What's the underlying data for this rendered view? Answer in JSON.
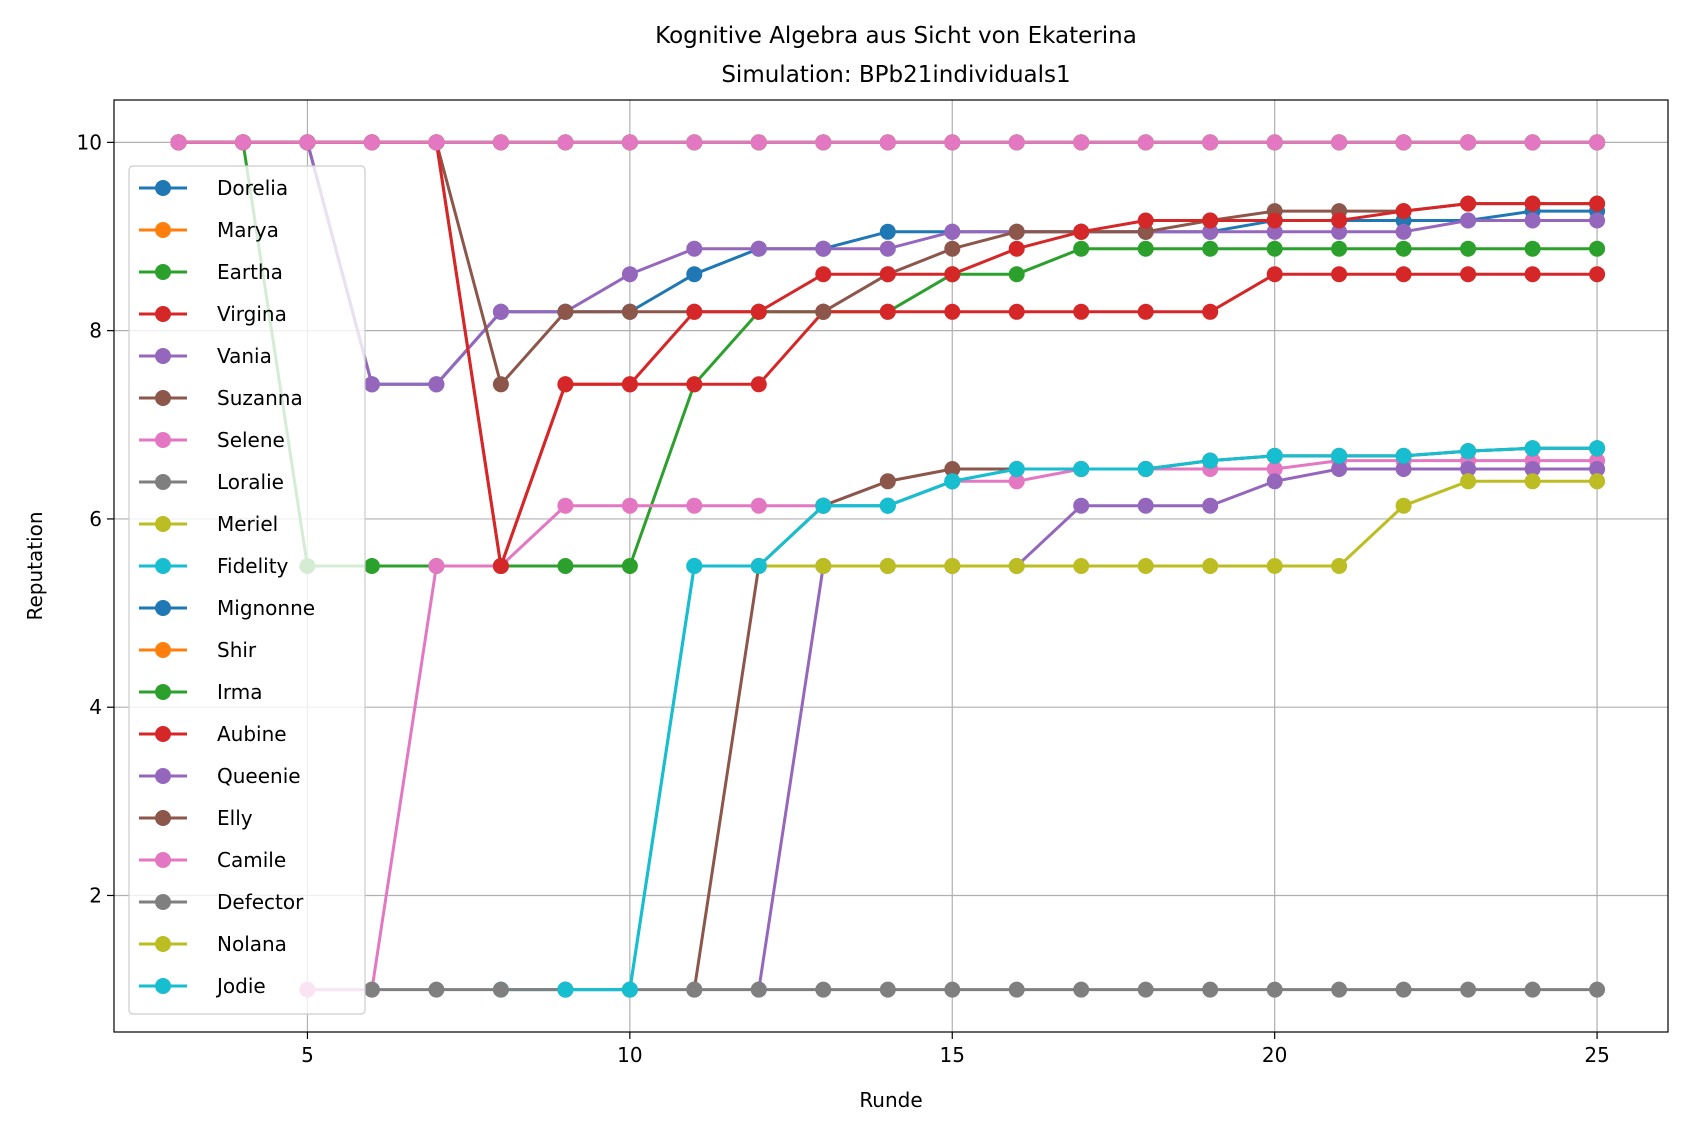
{
  "chart_data": {
    "type": "line",
    "title": "Kognitive Algebra aus Sicht von Ekaterina",
    "subtitle": "Simulation: BPb21individuals1",
    "xlabel": "Runde",
    "ylabel": "Reputation",
    "xlim": [
      2.0,
      26.1
    ],
    "ylim": [
      0.55,
      10.45
    ],
    "xticks": [
      5,
      10,
      15,
      20,
      25
    ],
    "yticks": [
      2,
      4,
      6,
      8,
      10
    ],
    "grid": true,
    "legend_position": "left",
    "series": [
      {
        "name": "Dorelia",
        "color": "#1f77b4",
        "x": [
          3,
          4,
          5,
          6,
          7,
          8,
          9,
          10,
          11,
          12,
          13,
          14,
          15,
          16,
          17,
          18,
          19,
          20,
          21,
          22,
          23,
          24,
          25
        ],
        "y": [
          10,
          10,
          10,
          7.43,
          7.43,
          8.2,
          8.2,
          8.2,
          8.6,
          8.87,
          8.87,
          9.05,
          9.05,
          9.05,
          9.05,
          9.05,
          9.05,
          9.17,
          9.17,
          9.17,
          9.17,
          9.27,
          9.27
        ]
      },
      {
        "name": "Marya",
        "color": "#ff7f0e",
        "x": [
          3,
          4,
          5,
          6,
          7,
          8,
          9,
          10,
          11,
          12,
          13,
          14,
          15,
          16,
          17,
          18,
          19,
          20,
          21,
          22,
          23,
          24,
          25
        ],
        "y": [
          10,
          10,
          10,
          10,
          10,
          10,
          10,
          10,
          10,
          10,
          10,
          10,
          10,
          10,
          10,
          10,
          10,
          10,
          10,
          10,
          10,
          10,
          10
        ]
      },
      {
        "name": "Eartha",
        "color": "#2ca02c",
        "x": [
          3,
          4,
          5,
          6,
          7,
          8,
          9,
          10,
          11,
          12,
          13,
          14,
          15,
          16,
          17,
          18,
          19,
          20,
          21,
          22,
          23,
          24,
          25
        ],
        "y": [
          10,
          10,
          5.5,
          5.5,
          5.5,
          5.5,
          5.5,
          5.5,
          7.43,
          8.2,
          8.2,
          8.2,
          8.6,
          8.6,
          8.87,
          8.87,
          8.87,
          8.87,
          8.87,
          8.87,
          8.87,
          8.87,
          8.87
        ]
      },
      {
        "name": "Virgina",
        "color": "#d62728",
        "x": [
          3,
          4,
          5,
          6,
          7,
          8,
          9,
          10,
          11,
          12,
          13,
          14,
          15,
          16,
          17,
          18,
          19,
          20,
          21,
          22,
          23,
          24,
          25
        ],
        "y": [
          10,
          10,
          10,
          10,
          10,
          5.5,
          7.43,
          7.43,
          7.43,
          7.43,
          8.2,
          8.2,
          8.2,
          8.2,
          8.2,
          8.2,
          8.2,
          8.6,
          8.6,
          8.6,
          8.6,
          8.6,
          8.6
        ]
      },
      {
        "name": "Vania",
        "color": "#9467bd",
        "x": [
          3,
          4,
          5,
          6,
          7,
          8,
          9,
          10,
          11,
          12,
          13,
          14,
          15,
          16,
          17,
          18,
          19,
          20,
          21,
          22,
          23,
          24,
          25
        ],
        "y": [
          10,
          10,
          10,
          7.43,
          7.43,
          8.2,
          8.2,
          8.6,
          8.87,
          8.87,
          8.87,
          8.87,
          9.05,
          9.05,
          9.05,
          9.05,
          9.05,
          9.05,
          9.05,
          9.05,
          9.17,
          9.17,
          9.17
        ]
      },
      {
        "name": "Suzanna",
        "color": "#8c564b",
        "x": [
          3,
          4,
          5,
          6,
          7,
          8,
          9,
          10,
          11,
          12,
          13,
          14,
          15,
          16,
          17,
          18,
          19,
          20,
          21,
          22,
          23,
          24,
          25
        ],
        "y": [
          10,
          10,
          10,
          10,
          10,
          7.43,
          8.2,
          8.2,
          8.2,
          8.2,
          8.2,
          8.6,
          8.87,
          9.05,
          9.05,
          9.05,
          9.17,
          9.27,
          9.27,
          9.27,
          9.35,
          9.35,
          9.35
        ]
      },
      {
        "name": "Selene",
        "color": "#e377c2",
        "x": [
          5,
          6,
          7,
          8,
          9,
          10,
          11,
          12,
          13,
          14,
          15,
          16,
          17,
          18,
          19,
          20,
          21,
          22,
          23,
          24,
          25
        ],
        "y": [
          1,
          1,
          5.5,
          5.5,
          6.14,
          6.14,
          6.14,
          6.14,
          6.14,
          6.14,
          6.4,
          6.4,
          6.53,
          6.53,
          6.53,
          6.53,
          6.62,
          6.62,
          6.62,
          6.62,
          6.62
        ]
      },
      {
        "name": "Loralie",
        "color": "#7f7f7f",
        "x": [
          3,
          4,
          5,
          6,
          7,
          8,
          9,
          10,
          11,
          12,
          13,
          14,
          15,
          16,
          17,
          18,
          19,
          20,
          21,
          22,
          23,
          24,
          25
        ],
        "y": [
          10,
          10,
          10,
          10,
          10,
          10,
          10,
          10,
          10,
          10,
          10,
          10,
          10,
          10,
          10,
          10,
          10,
          10,
          10,
          10,
          10,
          10,
          10
        ]
      },
      {
        "name": "Meriel",
        "color": "#bcbd22",
        "x": [
          3,
          4,
          5,
          6,
          7,
          8,
          9,
          10,
          11,
          12,
          13,
          14,
          15,
          16,
          17,
          18,
          19,
          20,
          21,
          22,
          23,
          24,
          25
        ],
        "y": [
          10,
          10,
          10,
          10,
          10,
          10,
          10,
          10,
          10,
          10,
          10,
          10,
          10,
          10,
          10,
          10,
          10,
          10,
          10,
          10,
          10,
          10,
          10
        ]
      },
      {
        "name": "Fidelity",
        "color": "#17becf",
        "x": [
          8,
          9,
          10,
          11,
          12,
          13,
          14,
          15,
          16,
          17,
          18,
          19,
          20,
          21,
          22,
          23,
          24,
          25
        ],
        "y": [
          1,
          1,
          1,
          5.5,
          5.5,
          6.14,
          6.14,
          6.4,
          6.53,
          6.53,
          6.53,
          6.62,
          6.67,
          6.67,
          6.67,
          6.72,
          6.75,
          6.75
        ]
      },
      {
        "name": "Mignonne",
        "color": "#1f77b4",
        "x": [
          3,
          4,
          5,
          6,
          7,
          8,
          9,
          10,
          11,
          12,
          13,
          14,
          15,
          16,
          17,
          18,
          19,
          20,
          21,
          22,
          23,
          24,
          25
        ],
        "y": [
          10,
          10,
          10,
          10,
          10,
          10,
          10,
          10,
          10,
          10,
          10,
          10,
          10,
          10,
          10,
          10,
          10,
          10,
          10,
          10,
          10,
          10,
          10
        ]
      },
      {
        "name": "Shir",
        "color": "#ff7f0e",
        "x": [
          3,
          4,
          5,
          6,
          7,
          8,
          9,
          10,
          11,
          12,
          13,
          14,
          15,
          16,
          17,
          18,
          19,
          20,
          21,
          22,
          23,
          24,
          25
        ],
        "y": [
          10,
          10,
          10,
          10,
          10,
          10,
          10,
          10,
          10,
          10,
          10,
          10,
          10,
          10,
          10,
          10,
          10,
          10,
          10,
          10,
          10,
          10,
          10
        ]
      },
      {
        "name": "Irma",
        "color": "#2ca02c",
        "x": [
          3,
          4,
          5,
          6,
          7,
          8,
          9,
          10,
          11,
          12,
          13,
          14,
          15,
          16,
          17,
          18,
          19,
          20,
          21,
          22,
          23,
          24,
          25
        ],
        "y": [
          10,
          10,
          10,
          10,
          10,
          10,
          10,
          10,
          10,
          10,
          10,
          10,
          10,
          10,
          10,
          10,
          10,
          10,
          10,
          10,
          10,
          10,
          10
        ]
      },
      {
        "name": "Aubine",
        "color": "#d62728",
        "x": [
          3,
          4,
          5,
          6,
          7,
          8,
          9,
          10,
          11,
          12,
          13,
          14,
          15,
          16,
          17,
          18,
          19,
          20,
          21,
          22,
          23,
          24,
          25
        ],
        "y": [
          10,
          10,
          10,
          10,
          10,
          5.5,
          7.43,
          7.43,
          8.2,
          8.2,
          8.6,
          8.6,
          8.6,
          8.87,
          9.05,
          9.17,
          9.17,
          9.17,
          9.17,
          9.27,
          9.35,
          9.35,
          9.35
        ]
      },
      {
        "name": "Queenie",
        "color": "#9467bd",
        "x": [
          12,
          13,
          14,
          15,
          16,
          17,
          18,
          19,
          20,
          21,
          22,
          23,
          24,
          25
        ],
        "y": [
          1,
          5.5,
          5.5,
          5.5,
          5.5,
          6.14,
          6.14,
          6.14,
          6.4,
          6.53,
          6.53,
          6.53,
          6.53,
          6.53
        ]
      },
      {
        "name": "Elly",
        "color": "#8c564b",
        "x": [
          11,
          12,
          13,
          14,
          15,
          16,
          17,
          18,
          19,
          20,
          21,
          22,
          23,
          24,
          25
        ],
        "y": [
          1,
          5.5,
          6.14,
          6.4,
          6.53,
          6.53,
          6.53,
          6.53,
          6.62,
          6.67,
          6.67,
          6.67,
          6.72,
          6.75,
          6.75
        ]
      },
      {
        "name": "Camile",
        "color": "#e377c2",
        "x": [
          3,
          4,
          5,
          6,
          7,
          8,
          9,
          10,
          11,
          12,
          13,
          14,
          15,
          16,
          17,
          18,
          19,
          20,
          21,
          22,
          23,
          24,
          25
        ],
        "y": [
          10,
          10,
          10,
          10,
          10,
          10,
          10,
          10,
          10,
          10,
          10,
          10,
          10,
          10,
          10,
          10,
          10,
          10,
          10,
          10,
          10,
          10,
          10
        ]
      },
      {
        "name": "Defector",
        "color": "#7f7f7f",
        "x": [
          6,
          7,
          8,
          9,
          10,
          11,
          12,
          13,
          14,
          15,
          16,
          17,
          18,
          19,
          20,
          21,
          22,
          23,
          24,
          25
        ],
        "y": [
          1,
          1,
          1,
          1,
          1,
          1,
          1,
          1,
          1,
          1,
          1,
          1,
          1,
          1,
          1,
          1,
          1,
          1,
          1,
          1
        ]
      },
      {
        "name": "Nolana",
        "color": "#bcbd22",
        "x": [
          12,
          13,
          14,
          15,
          16,
          17,
          18,
          19,
          20,
          21,
          22,
          23,
          24,
          25
        ],
        "y": [
          5.5,
          5.5,
          5.5,
          5.5,
          5.5,
          5.5,
          5.5,
          5.5,
          5.5,
          5.5,
          6.14,
          6.4,
          6.4,
          6.4
        ]
      },
      {
        "name": "Jodie",
        "color": "#17becf",
        "x": [
          9,
          10,
          11,
          12,
          13,
          14,
          15,
          16,
          17,
          18,
          19,
          20,
          21,
          22,
          23,
          24,
          25
        ],
        "y": [
          1,
          1,
          5.5,
          5.5,
          6.14,
          6.14,
          6.4,
          6.53,
          6.53,
          6.53,
          6.62,
          6.67,
          6.67,
          6.67,
          6.72,
          6.75,
          6.75
        ]
      }
    ]
  }
}
